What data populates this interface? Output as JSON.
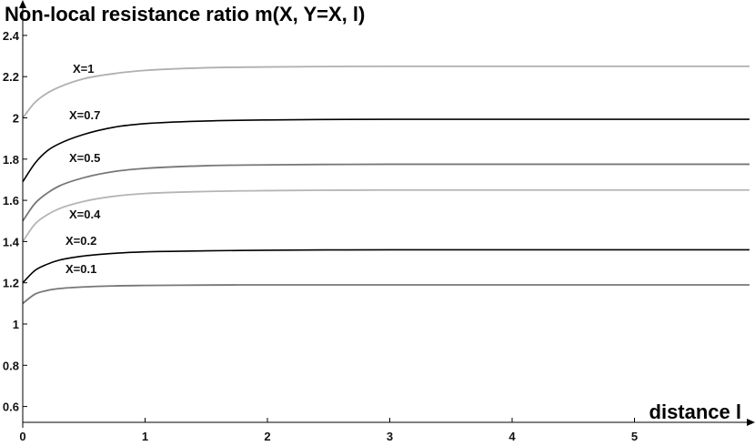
{
  "chart_data": {
    "type": "line",
    "title": "",
    "ylabel": "Non-local resistance ratio m(X, Y=X, l)",
    "xlabel": "distance l",
    "xlim": [
      0,
      5.94
    ],
    "ylim": [
      0.5,
      2.55
    ],
    "x_ticks": [
      "0",
      "1",
      "2",
      "3",
      "4",
      "5"
    ],
    "y_ticks": [
      "0.6",
      "0.8",
      "1",
      "1.2",
      "1.4",
      "1.6",
      "1.8",
      "2",
      "2.2",
      "2.4"
    ],
    "grid": false,
    "series": [
      {
        "name": "X=1",
        "color": "#b0b0b0",
        "x": [
          0,
          0.1,
          0.2,
          0.3,
          0.5,
          0.75,
          1,
          1.5,
          2,
          3,
          4,
          5,
          5.94
        ],
        "y": [
          2.0,
          2.075,
          2.12,
          2.15,
          2.19,
          2.215,
          2.23,
          2.243,
          2.247,
          2.25,
          2.25,
          2.25,
          2.25
        ]
      },
      {
        "name": "X=0.7",
        "color": "#000000",
        "x": [
          0,
          0.1,
          0.2,
          0.3,
          0.5,
          0.75,
          1,
          1.5,
          2,
          3,
          4,
          5,
          5.94
        ],
        "y": [
          1.69,
          1.78,
          1.84,
          1.875,
          1.92,
          1.955,
          1.972,
          1.985,
          1.99,
          1.993,
          1.993,
          1.993,
          1.993
        ]
      },
      {
        "name": "X=0.5",
        "color": "#777777",
        "x": [
          0,
          0.1,
          0.2,
          0.3,
          0.5,
          0.75,
          1,
          1.5,
          2,
          3,
          4,
          5,
          5.94
        ],
        "y": [
          1.5,
          1.585,
          1.635,
          1.67,
          1.71,
          1.74,
          1.755,
          1.768,
          1.772,
          1.775,
          1.775,
          1.775,
          1.775
        ]
      },
      {
        "name": "X=0.4",
        "color": "#b5b5b5",
        "x": [
          0,
          0.1,
          0.2,
          0.3,
          0.5,
          0.75,
          1,
          1.5,
          2,
          3,
          4,
          5,
          5.94
        ],
        "y": [
          1.4,
          1.485,
          1.53,
          1.56,
          1.595,
          1.62,
          1.633,
          1.643,
          1.647,
          1.65,
          1.65,
          1.65,
          1.65
        ]
      },
      {
        "name": "X=0.2",
        "color": "#000000",
        "x": [
          0,
          0.1,
          0.2,
          0.3,
          0.5,
          0.75,
          1,
          1.5,
          2,
          3,
          4,
          5,
          5.94
        ],
        "y": [
          1.2,
          1.26,
          1.29,
          1.31,
          1.33,
          1.343,
          1.35,
          1.355,
          1.358,
          1.36,
          1.36,
          1.36,
          1.36
        ]
      },
      {
        "name": "X=0.1",
        "color": "#777777",
        "x": [
          0,
          0.1,
          0.2,
          0.3,
          0.5,
          0.75,
          1,
          1.5,
          2,
          3,
          4,
          5,
          5.94
        ],
        "y": [
          1.1,
          1.145,
          1.163,
          1.172,
          1.18,
          1.185,
          1.187,
          1.189,
          1.19,
          1.19,
          1.19,
          1.19,
          1.19
        ]
      }
    ]
  }
}
